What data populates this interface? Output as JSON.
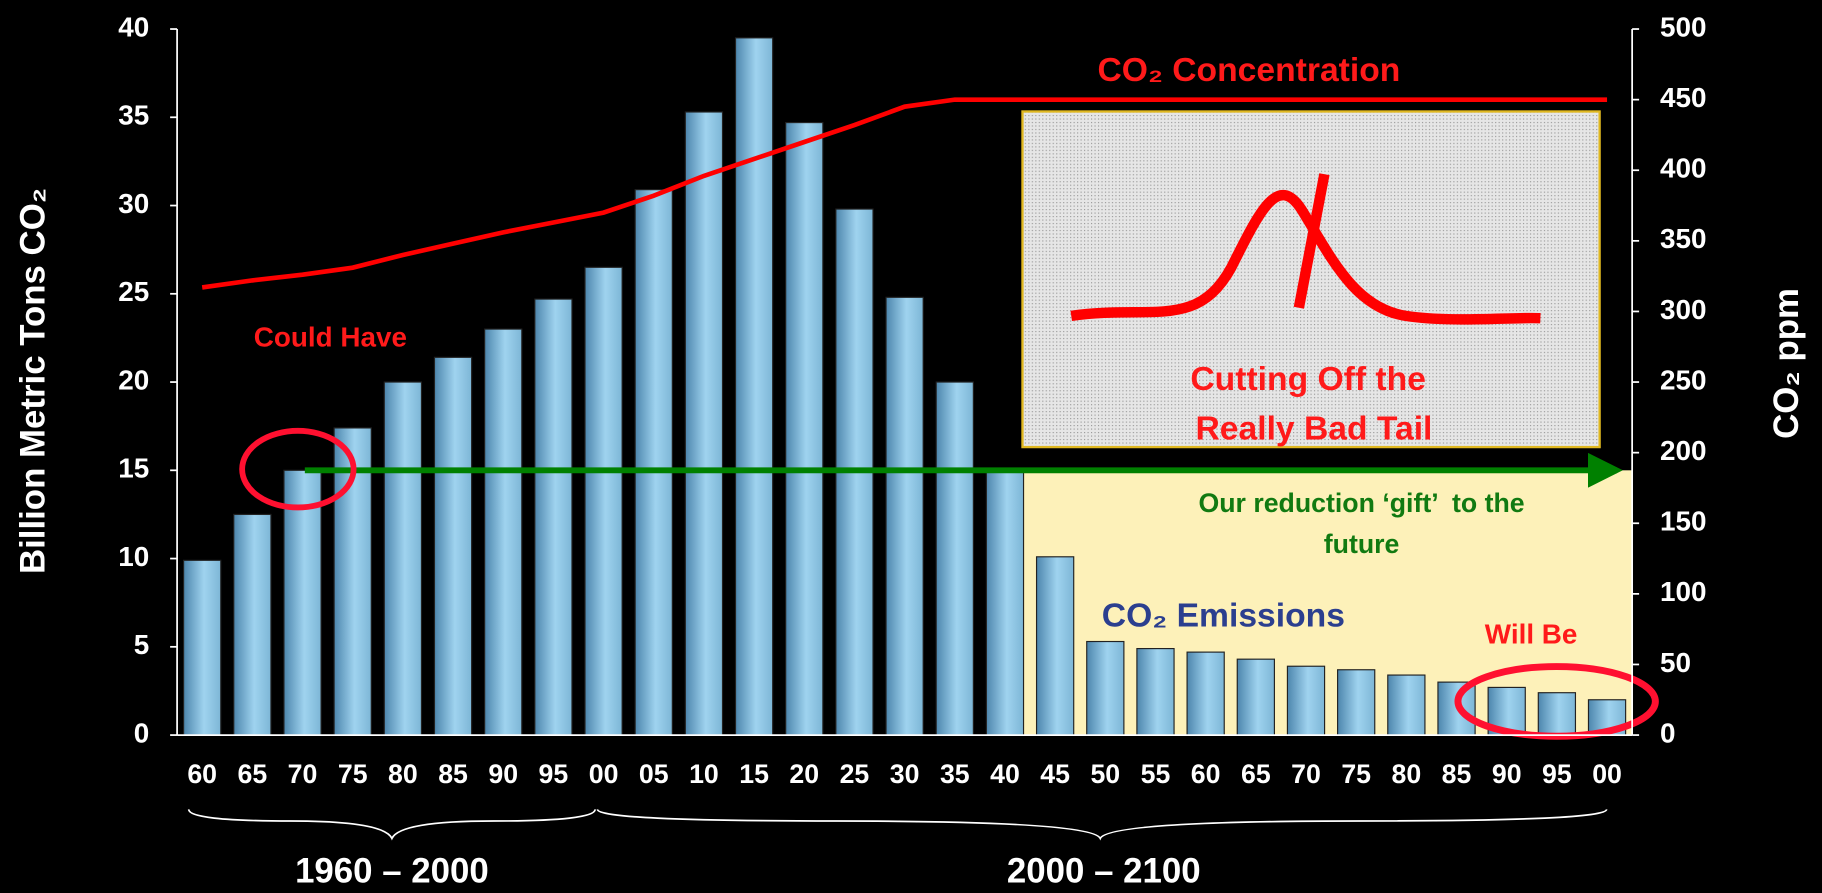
{
  "chart_data": {
    "type": "bar",
    "y_label": "Billion Metric Tons CO₂",
    "y2_label": "CO₂ ppm",
    "categories": [
      "60",
      "65",
      "70",
      "75",
      "80",
      "85",
      "90",
      "95",
      "00",
      "05",
      "10",
      "15",
      "20",
      "25",
      "30",
      "35",
      "40",
      "45",
      "50",
      "55",
      "60",
      "65",
      "70",
      "75",
      "80",
      "85",
      "90",
      "95",
      "00"
    ],
    "series": [
      {
        "name": "CO₂ Emissions",
        "type": "bar",
        "color": "#9fd3ef",
        "values": [
          9.9,
          12.5,
          15,
          17.4,
          20,
          21.4,
          23,
          24.7,
          26.5,
          30.9,
          35.3,
          39.5,
          34.7,
          29.8,
          24.8,
          20,
          15,
          10.1,
          5.3,
          4.9,
          4.7,
          4.3,
          3.9,
          3.7,
          3.4,
          3.0,
          2.7,
          2.4,
          2.0
        ]
      },
      {
        "name": "CO₂ Concentration",
        "type": "line",
        "axis": "y2",
        "color": "#ff0000",
        "values": [
          317,
          322,
          326,
          331,
          340,
          348,
          356,
          363,
          370,
          382,
          396,
          408,
          420,
          432,
          445,
          450,
          450,
          450,
          450,
          450,
          450,
          450,
          450,
          450,
          450,
          450,
          450,
          450,
          450
        ]
      }
    ],
    "ylim": [
      0,
      40
    ],
    "yticks": [
      0,
      5,
      10,
      15,
      20,
      25,
      30,
      35,
      40
    ],
    "y2lim": [
      0,
      500
    ],
    "y2ticks": [
      0,
      50,
      100,
      150,
      200,
      250,
      300,
      350,
      400,
      450,
      500
    ],
    "annotations": [
      "Could Have",
      "Will Be",
      "Cutting Off the",
      "Really Bad Tail",
      "Our reduction ‘gift’  to the",
      "future",
      "1960 – 2000",
      "2000 – 2100"
    ]
  }
}
